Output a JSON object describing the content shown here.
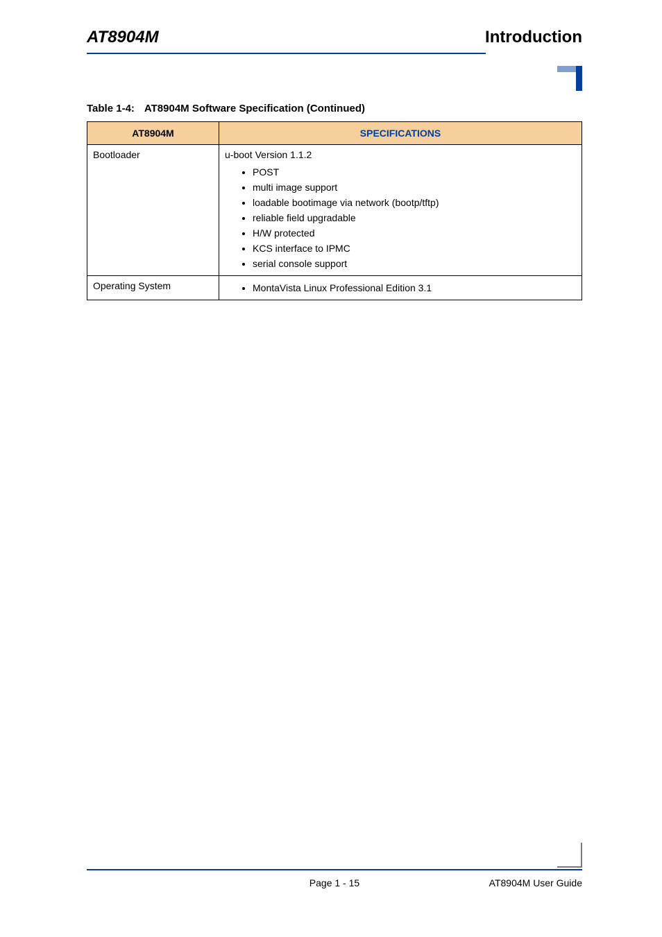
{
  "header": {
    "left": "AT8904M",
    "right": "Introduction"
  },
  "caption": {
    "label": "Table 1-4:",
    "title": "AT8904M Software Specification  (Continued)"
  },
  "table": {
    "columns": [
      "AT8904M",
      "SPECIFICATIONS"
    ],
    "rows": [
      {
        "name": "Bootloader",
        "lead": "u-boot Version 1.1.2",
        "items": [
          "POST",
          "multi image support",
          "loadable bootimage via network (bootp/tftp)",
          "reliable field upgradable",
          "H/W protected",
          "KCS interface to IPMC",
          "serial console support"
        ]
      },
      {
        "name": "Operating System",
        "lead": "",
        "items": [
          "MontaVista Linux Professional Edition 3.1"
        ]
      }
    ]
  },
  "footer": {
    "center": "Page 1 - 15",
    "right": "AT8904M User Guide"
  },
  "colors": {
    "rule": "#003e9c",
    "header_bg": "#f7cf9c",
    "spec_header_text": "#003e9c",
    "corner_light": "#809fce"
  }
}
